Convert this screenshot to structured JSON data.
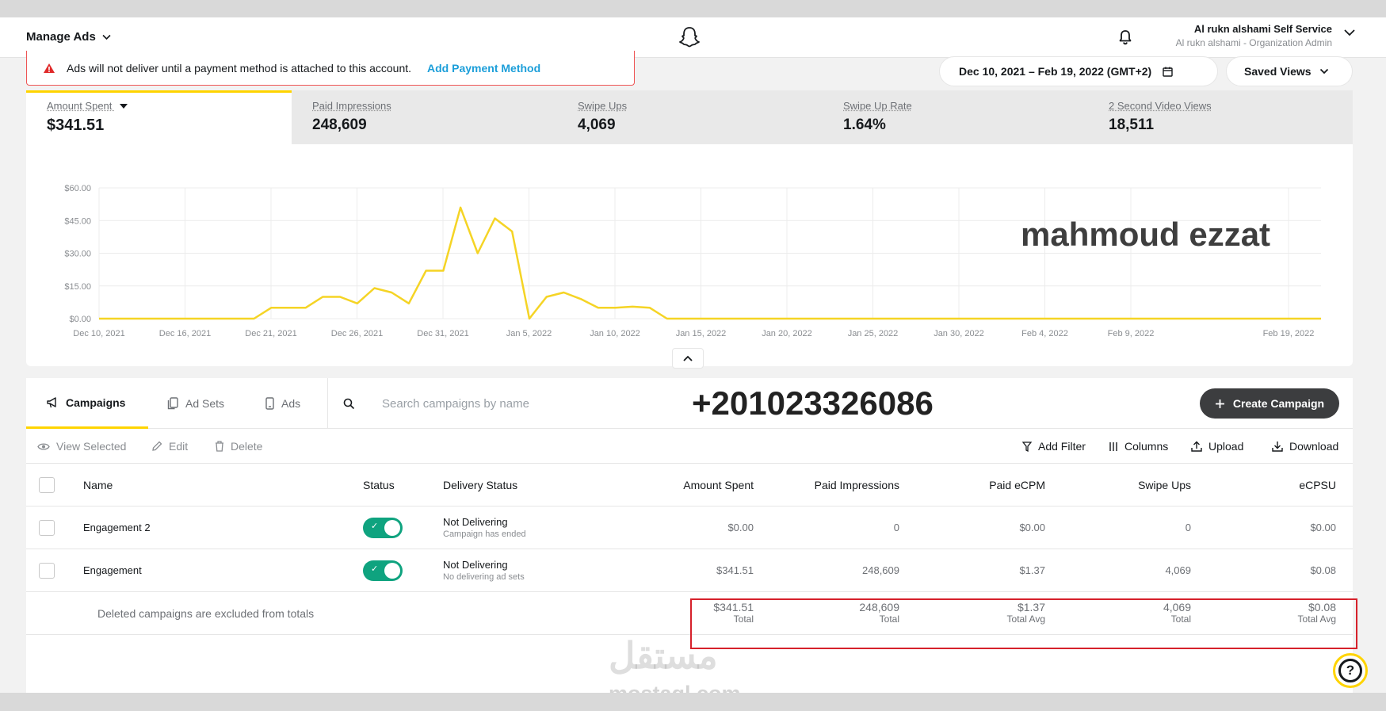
{
  "topbar": {
    "manage_label": "Manage Ads",
    "account_name": "Al rukn alshami Self Service",
    "account_role": "Al rukn alshami - Organization Admin"
  },
  "alert": {
    "message": "Ads will not deliver until a payment method is attached to this account.",
    "link": "Add Payment Method"
  },
  "date_range": "Dec 10, 2021 – Feb 19, 2022 (GMT+2)",
  "saved_views": "Saved Views",
  "metrics": [
    {
      "label": "Amount Spent",
      "value": "$341.51"
    },
    {
      "label": "Paid Impressions",
      "value": "248,609"
    },
    {
      "label": "Swipe Ups",
      "value": "4,069"
    },
    {
      "label": "Swipe Up Rate",
      "value": "1.64%"
    },
    {
      "label": "2 Second Video Views",
      "value": "18,511"
    }
  ],
  "chart_data": {
    "type": "line",
    "series": [
      {
        "values": [
          0,
          0,
          0,
          0,
          0,
          0,
          0,
          0,
          0,
          0,
          5,
          5,
          5,
          10,
          10,
          7,
          14,
          12,
          7,
          22,
          22,
          51,
          30,
          46,
          40,
          0,
          10,
          12,
          9,
          5,
          5,
          5.5,
          5,
          0,
          0,
          0,
          0,
          0,
          0,
          0,
          0,
          0,
          0,
          0,
          0,
          0,
          0,
          0,
          0,
          0,
          0,
          0,
          0,
          0,
          0,
          0,
          0,
          0,
          0,
          0,
          0,
          0,
          0,
          0,
          0,
          0,
          0,
          0,
          0,
          0,
          0,
          0
        ]
      }
    ],
    "x_tick_labels": [
      "Dec 10, 2021",
      "Dec 16, 2021",
      "Dec 21, 2021",
      "Dec 26, 2021",
      "Dec 31, 2021",
      "Jan 5, 2022",
      "Jan 10, 2022",
      "Jan 15, 2022",
      "Jan 20, 2022",
      "Jan 25, 2022",
      "Jan 30, 2022",
      "Feb 4, 2022",
      "Feb 9, 2022",
      "Feb 19, 2022"
    ],
    "y_tick_labels": [
      "$0.00",
      "$15.00",
      "$30.00",
      "$45.00",
      "$60.00"
    ],
    "ylim": [
      0,
      60
    ],
    "grid": true,
    "line_color": "#f5d425"
  },
  "overlay_name": "mahmoud ezzat",
  "overlay_phone": "+201023326086",
  "tabs": [
    {
      "label": "Campaigns"
    },
    {
      "label": "Ad Sets"
    },
    {
      "label": "Ads"
    }
  ],
  "search_placeholder": "Search campaigns by name",
  "create_label": "Create Campaign",
  "toolbar": {
    "view_selected": "View Selected",
    "edit": "Edit",
    "delete": "Delete",
    "add_filter": "Add Filter",
    "columns": "Columns",
    "upload": "Upload",
    "download": "Download"
  },
  "table": {
    "headers": {
      "name": "Name",
      "status": "Status",
      "delivery": "Delivery Status",
      "amount": "Amount Spent",
      "impressions": "Paid Impressions",
      "ecpm": "Paid eCPM",
      "swipes": "Swipe Ups",
      "ecpsu": "eCPSU"
    },
    "rows": [
      {
        "name": "Engagement 2",
        "delivery": "Not Delivering",
        "delivery_sub": "Campaign has ended",
        "amount": "$0.00",
        "impressions": "0",
        "ecpm": "$0.00",
        "swipes": "0",
        "ecpsu": "$0.00"
      },
      {
        "name": "Engagement",
        "delivery": "Not Delivering",
        "delivery_sub": "No delivering ad sets",
        "amount": "$341.51",
        "impressions": "248,609",
        "ecpm": "$1.37",
        "swipes": "4,069",
        "ecpsu": "$0.08"
      }
    ],
    "totals": {
      "note": "Deleted campaigns are excluded from totals",
      "amount": "$341.51",
      "amount_label": "Total",
      "impressions": "248,609",
      "impressions_label": "Total",
      "ecpm": "$1.37",
      "ecpm_label": "Total Avg",
      "swipes": "4,069",
      "swipes_label": "Total",
      "ecpsu": "$0.08",
      "ecpsu_label": "Total Avg"
    }
  },
  "watermark": {
    "logo_text": "مستقل",
    "site": "mostaql.com"
  }
}
